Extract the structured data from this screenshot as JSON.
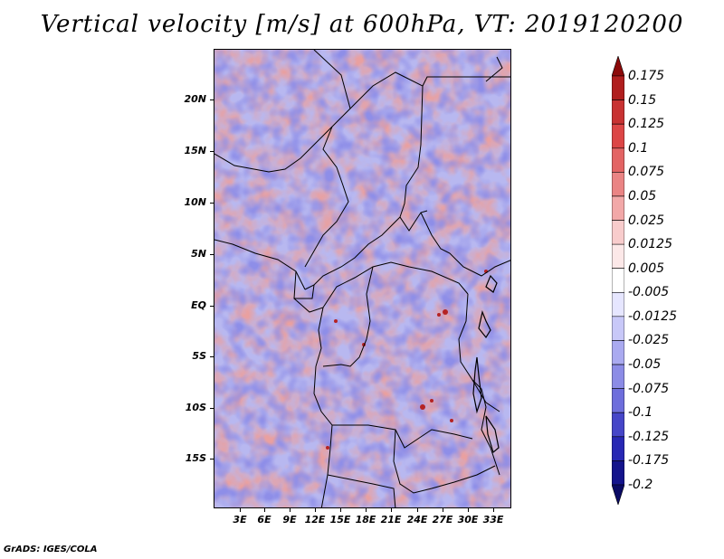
{
  "title": "Vertical velocity [m/s] at 600hPa, VT: 2019120200",
  "lat_labels": [
    "20N",
    "15N",
    "10N",
    "5N",
    "EQ",
    "5S",
    "10S",
    "15S"
  ],
  "lon_labels": [
    "3E",
    "6E",
    "9E",
    "12E",
    "15E",
    "18E",
    "21E",
    "24E",
    "27E",
    "30E",
    "33E"
  ],
  "colorbar": {
    "labels": [
      "0.175",
      "0.15",
      "0.125",
      "0.1",
      "0.075",
      "0.05",
      "0.025",
      "0.0125",
      "0.005",
      "-0.005",
      "-0.0125",
      "-0.025",
      "-0.05",
      "-0.075",
      "-0.1",
      "-0.125",
      "-0.175",
      "-0.2"
    ],
    "colors": [
      "#8c0a0a",
      "#b01e1e",
      "#c83232",
      "#dc4646",
      "#e36464",
      "#ea8484",
      "#f2a8a8",
      "#f8cccc",
      "#fce8e8",
      "#ffffff",
      "#e6e6ff",
      "#c8c8f8",
      "#aaaaf0",
      "#8c8ce6",
      "#6e6edc",
      "#4646c8",
      "#2828b4",
      "#14148c",
      "#0a0a64"
    ]
  },
  "map_colors": {
    "up": "#e9a0a0",
    "down": "#a7a7ee",
    "neutral": "#f4eef0"
  },
  "footer": "GrADS: IGES/COLA"
}
